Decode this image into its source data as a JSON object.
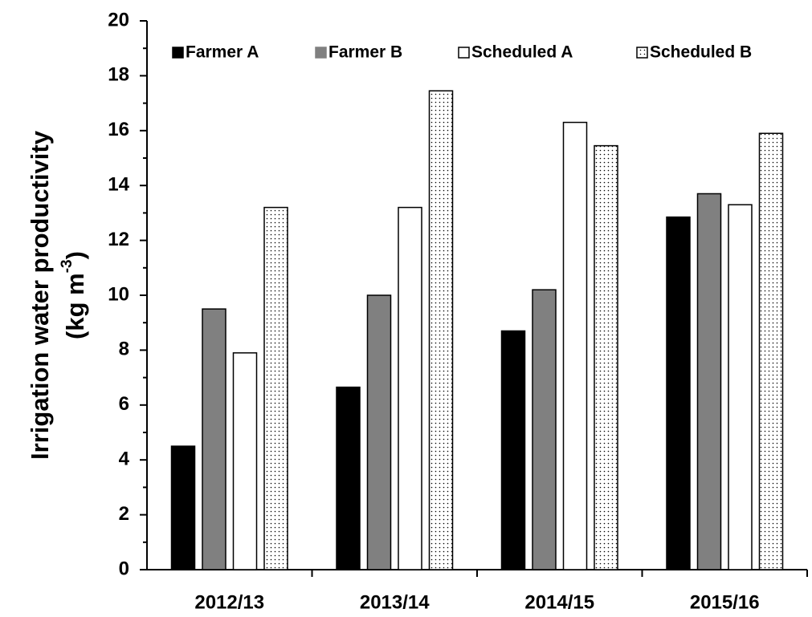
{
  "chart_data": {
    "type": "bar",
    "y_label": "Irrigation water productivity",
    "y_label_unit": "(kg m",
    "y_label_unit_sup": "-3",
    "y_label_unit_end": ")",
    "categories": [
      "2012/13",
      "2013/14",
      "2014/15",
      "2015/16"
    ],
    "series": [
      {
        "name": "Farmer A",
        "color": "#000000",
        "values": [
          4.5,
          6.65,
          8.7,
          12.85
        ]
      },
      {
        "name": "Farmer B",
        "color": "#808080",
        "values": [
          9.5,
          10.0,
          10.2,
          13.7
        ]
      },
      {
        "name": "Scheduled A",
        "color": "#ffffff",
        "values": [
          7.9,
          13.2,
          16.3,
          13.3
        ]
      },
      {
        "name": "Scheduled B",
        "color": "#ffffff",
        "pattern": "dots",
        "values": [
          13.2,
          17.45,
          15.45,
          15.9
        ]
      }
    ],
    "ylim": [
      0,
      20
    ],
    "yticks": [
      0,
      2,
      4,
      6,
      8,
      10,
      12,
      14,
      16,
      18,
      20
    ],
    "minor_yticks": [
      1,
      3,
      5,
      7,
      9,
      11,
      13,
      15,
      17,
      19
    ],
    "grid": false,
    "legend": "top"
  }
}
